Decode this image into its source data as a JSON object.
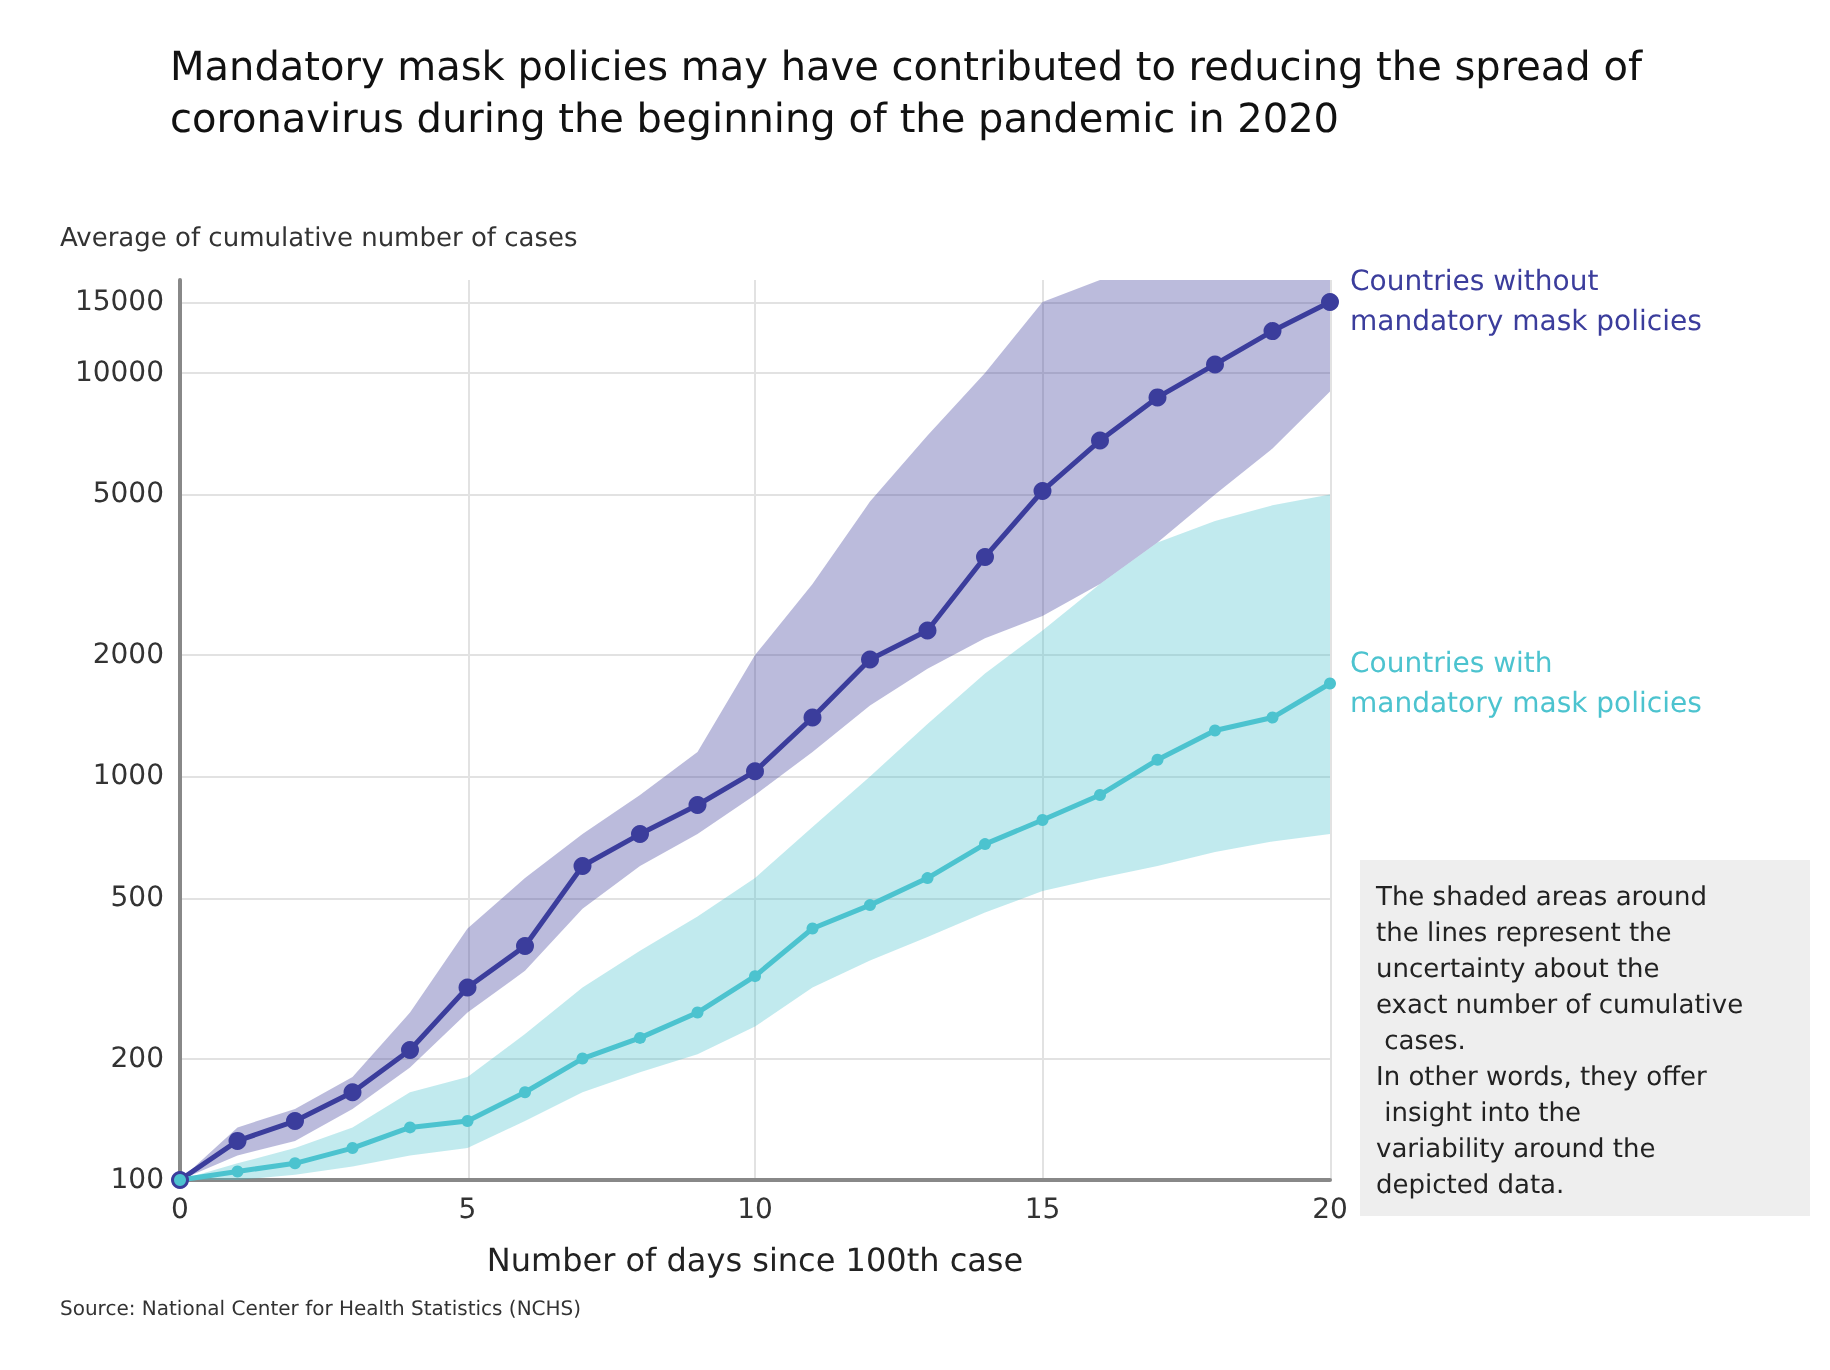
{
  "chart_data": {
    "type": "line",
    "title": "Mandatory mask policies may have contributed to reducing the spread of coronavirus during the beginning of the pandemic in 2020",
    "xlabel": "Number of days since 100th case",
    "ylabel": "Average of cumulative number of cases",
    "x": [
      0,
      1,
      2,
      3,
      4,
      5,
      6,
      7,
      8,
      9,
      10,
      11,
      12,
      13,
      14,
      15,
      16,
      17,
      18,
      19,
      20
    ],
    "series": [
      {
        "name": "Countries without mandatory mask policies",
        "color": "#3b3d9c",
        "values": [
          100,
          125,
          140,
          165,
          210,
          300,
          380,
          600,
          720,
          850,
          1030,
          1400,
          1950,
          2300,
          3500,
          5100,
          6800,
          8700,
          10500,
          12700,
          15000
        ],
        "lower": [
          100,
          115,
          125,
          150,
          190,
          260,
          330,
          470,
          600,
          720,
          900,
          1150,
          1500,
          1850,
          2200,
          2500,
          3000,
          3800,
          5000,
          6500,
          9000
        ],
        "upper": [
          100,
          135,
          150,
          180,
          260,
          420,
          560,
          720,
          900,
          1150,
          2000,
          3000,
          4800,
          7000,
          10000,
          15000,
          17000,
          17000,
          17000,
          17000,
          17000
        ]
      },
      {
        "name": "Countries with mandatory mask policies",
        "color": "#4cc3cf",
        "values": [
          100,
          105,
          110,
          120,
          135,
          140,
          165,
          200,
          225,
          260,
          320,
          420,
          480,
          560,
          680,
          780,
          900,
          1100,
          1300,
          1400,
          1700
        ],
        "lower": [
          100,
          100,
          103,
          108,
          115,
          120,
          140,
          165,
          185,
          205,
          240,
          300,
          350,
          400,
          460,
          520,
          560,
          600,
          650,
          690,
          720
        ],
        "upper": [
          100,
          110,
          120,
          135,
          165,
          180,
          230,
          300,
          370,
          450,
          560,
          750,
          1000,
          1350,
          1800,
          2300,
          3000,
          3800,
          4300,
          4700,
          5000
        ]
      }
    ],
    "xlim": [
      0,
      20
    ],
    "xticks": [
      0,
      5,
      10,
      15,
      20
    ],
    "ylim": [
      100,
      17000
    ],
    "yticks": [
      100,
      200,
      500,
      1000,
      2000,
      5000,
      10000,
      15000
    ],
    "log": "y",
    "grid": true,
    "legend": false,
    "marker": "circle",
    "line_style": "solid",
    "annotations": [
      "The shaded areas around the lines represent the uncertainty about the exact number of cumulative cases.",
      "In other words, they offer insight into the variability around the depicted data.",
      "Source: National Center for Health Statistics (NCHS)"
    ]
  }
}
